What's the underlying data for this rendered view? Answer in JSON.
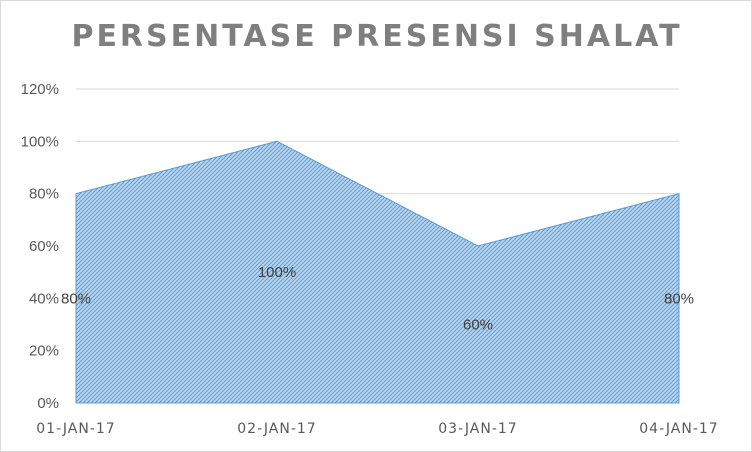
{
  "chart_data": {
    "type": "area",
    "title": "PERSENTASE PRESENSI SHALAT",
    "categories": [
      "01-JAN-17",
      "02-JAN-17",
      "03-JAN-17",
      "04-JAN-17"
    ],
    "values": [
      80,
      100,
      60,
      80
    ],
    "data_labels": [
      "80%",
      "100%",
      "60%",
      "80%"
    ],
    "y_ticks": [
      "0%",
      "20%",
      "40%",
      "60%",
      "80%",
      "100%",
      "120%"
    ],
    "ylim": [
      0,
      120
    ],
    "grid": true,
    "legend": "none",
    "colors": {
      "fill": "#bdd7ee",
      "hatch": "#5b9bd5",
      "outline": "#5b9bd5",
      "grid": "#d9d9d9",
      "text": "#595959",
      "title": "#7f7f7f"
    }
  }
}
